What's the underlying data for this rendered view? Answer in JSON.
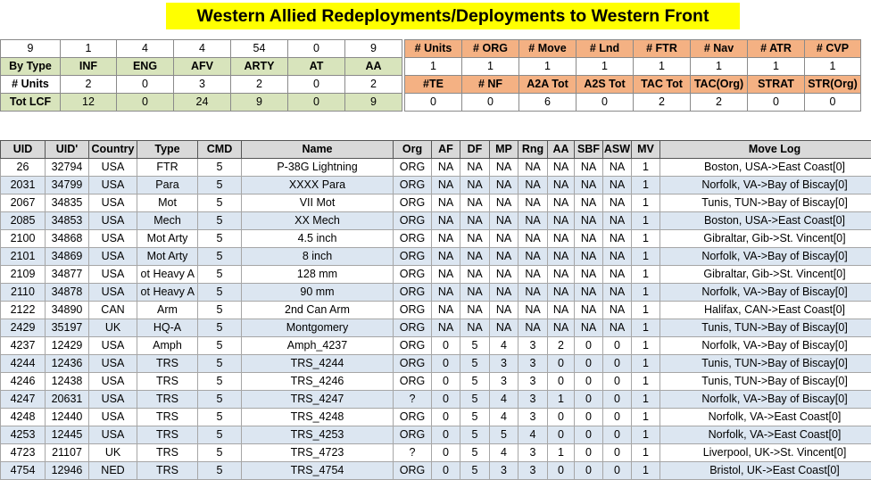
{
  "title": "Western Allied Redeployments/Deployments to Western Front",
  "summary_left": {
    "top_row": [
      "9",
      "1",
      "4",
      "4",
      "54",
      "0",
      "9"
    ],
    "header_row": [
      "By Type",
      "INF",
      "ENG",
      "AFV",
      "ARTY",
      "AT",
      "AA"
    ],
    "units_row": [
      "# Units",
      "2",
      "0",
      "3",
      "2",
      "0",
      "2"
    ],
    "lcf_row": [
      "Tot LCF",
      "12",
      "0",
      "24",
      "9",
      "0",
      "9"
    ]
  },
  "summary_right": {
    "header1": [
      "# Units",
      "# ORG",
      "# Move",
      "# Lnd",
      "# FTR",
      "# Nav",
      "# ATR",
      "# CVP"
    ],
    "values1": [
      "1",
      "1",
      "1",
      "1",
      "1",
      "1",
      "1",
      "1"
    ],
    "header2": [
      "#TE",
      "# NF",
      "A2A Tot",
      "A2S Tot",
      "TAC Tot",
      "TAC(Org)",
      "STRAT",
      "STR(Org)"
    ],
    "values2": [
      "0",
      "0",
      "6",
      "0",
      "2",
      "2",
      "0",
      "0"
    ]
  },
  "main_table": {
    "columns": [
      "UID",
      "UID'",
      "Country",
      "Type",
      "CMD",
      "Name",
      "Org",
      "AF",
      "DF",
      "MP",
      "Rng",
      "AA",
      "SBF",
      "ASW",
      "MV",
      "Move Log"
    ],
    "rows": [
      [
        "26",
        "32794",
        "USA",
        "FTR",
        "5",
        "P-38G Lightning",
        "ORG",
        "NA",
        "NA",
        "NA",
        "NA",
        "NA",
        "NA",
        "NA",
        "1",
        "Boston, USA->East Coast[0]"
      ],
      [
        "2031",
        "34799",
        "USA",
        "Para",
        "5",
        "XXXX Para",
        "ORG",
        "NA",
        "NA",
        "NA",
        "NA",
        "NA",
        "NA",
        "NA",
        "1",
        "Norfolk, VA->Bay of Biscay[0]"
      ],
      [
        "2067",
        "34835",
        "USA",
        "Mot",
        "5",
        "VII Mot",
        "ORG",
        "NA",
        "NA",
        "NA",
        "NA",
        "NA",
        "NA",
        "NA",
        "1",
        "Tunis, TUN->Bay of Biscay[0]"
      ],
      [
        "2085",
        "34853",
        "USA",
        "Mech",
        "5",
        "XX Mech",
        "ORG",
        "NA",
        "NA",
        "NA",
        "NA",
        "NA",
        "NA",
        "NA",
        "1",
        "Boston, USA->East Coast[0]"
      ],
      [
        "2100",
        "34868",
        "USA",
        "Mot Arty",
        "5",
        "4.5 inch",
        "ORG",
        "NA",
        "NA",
        "NA",
        "NA",
        "NA",
        "NA",
        "NA",
        "1",
        "Gibraltar, Gib->St. Vincent[0]"
      ],
      [
        "2101",
        "34869",
        "USA",
        "Mot Arty",
        "5",
        "8 inch",
        "ORG",
        "NA",
        "NA",
        "NA",
        "NA",
        "NA",
        "NA",
        "NA",
        "1",
        "Norfolk, VA->Bay of Biscay[0]"
      ],
      [
        "2109",
        "34877",
        "USA",
        "ot Heavy A",
        "5",
        "128 mm",
        "ORG",
        "NA",
        "NA",
        "NA",
        "NA",
        "NA",
        "NA",
        "NA",
        "1",
        "Gibraltar, Gib->St. Vincent[0]"
      ],
      [
        "2110",
        "34878",
        "USA",
        "ot Heavy A",
        "5",
        "90 mm",
        "ORG",
        "NA",
        "NA",
        "NA",
        "NA",
        "NA",
        "NA",
        "NA",
        "1",
        "Norfolk, VA->Bay of Biscay[0]"
      ],
      [
        "2122",
        "34890",
        "CAN",
        "Arm",
        "5",
        "2nd Can Arm",
        "ORG",
        "NA",
        "NA",
        "NA",
        "NA",
        "NA",
        "NA",
        "NA",
        "1",
        "Halifax, CAN->East Coast[0]"
      ],
      [
        "2429",
        "35197",
        "UK",
        "HQ-A",
        "5",
        "Montgomery",
        "ORG",
        "NA",
        "NA",
        "NA",
        "NA",
        "NA",
        "NA",
        "NA",
        "1",
        "Tunis, TUN->Bay of Biscay[0]"
      ],
      [
        "4237",
        "12429",
        "USA",
        "Amph",
        "5",
        "Amph_4237",
        "ORG",
        "0",
        "5",
        "4",
        "3",
        "2",
        "0",
        "0",
        "1",
        "Norfolk, VA->Bay of Biscay[0]"
      ],
      [
        "4244",
        "12436",
        "USA",
        "TRS",
        "5",
        "TRS_4244",
        "ORG",
        "0",
        "5",
        "3",
        "3",
        "0",
        "0",
        "0",
        "1",
        "Tunis, TUN->Bay of Biscay[0]"
      ],
      [
        "4246",
        "12438",
        "USA",
        "TRS",
        "5",
        "TRS_4246",
        "ORG",
        "0",
        "5",
        "3",
        "3",
        "0",
        "0",
        "0",
        "1",
        "Tunis, TUN->Bay of Biscay[0]"
      ],
      [
        "4247",
        "20631",
        "USA",
        "TRS",
        "5",
        "TRS_4247",
        "?",
        "0",
        "5",
        "4",
        "3",
        "1",
        "0",
        "0",
        "1",
        "Norfolk, VA->Bay of Biscay[0]"
      ],
      [
        "4248",
        "12440",
        "USA",
        "TRS",
        "5",
        "TRS_4248",
        "ORG",
        "0",
        "5",
        "4",
        "3",
        "0",
        "0",
        "0",
        "1",
        "Norfolk, VA->East Coast[0]"
      ],
      [
        "4253",
        "12445",
        "USA",
        "TRS",
        "5",
        "TRS_4253",
        "ORG",
        "0",
        "5",
        "5",
        "4",
        "0",
        "0",
        "0",
        "1",
        "Norfolk, VA->East Coast[0]"
      ],
      [
        "4723",
        "21107",
        "UK",
        "TRS",
        "5",
        "TRS_4723",
        "?",
        "0",
        "5",
        "4",
        "3",
        "1",
        "0",
        "0",
        "1",
        "Liverpool, UK->St. Vincent[0]"
      ],
      [
        "4754",
        "12946",
        "NED",
        "TRS",
        "5",
        "TRS_4754",
        "ORG",
        "0",
        "5",
        "3",
        "3",
        "0",
        "0",
        "0",
        "1",
        "Bristol, UK->East Coast[0]"
      ]
    ]
  }
}
